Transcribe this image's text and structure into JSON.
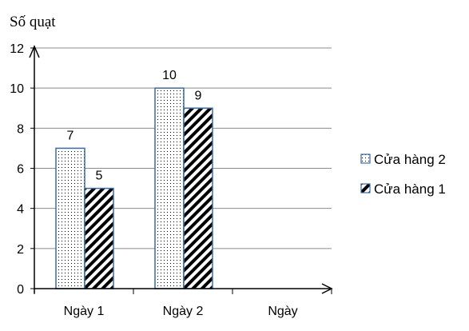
{
  "chart_data": {
    "type": "bar",
    "ylabel": "Số quạt",
    "xlabel": "Ngày",
    "categories": [
      "Ngày 1",
      "Ngày 2"
    ],
    "ylim": [
      0,
      12
    ],
    "yticks": [
      0,
      2,
      4,
      6,
      8,
      10,
      12
    ],
    "grid": true,
    "legend_position": "right",
    "series": [
      {
        "name": "Cửa hàng 2",
        "values": [
          7,
          10
        ],
        "pattern": "dots",
        "border_color": "#3a6aa8"
      },
      {
        "name": "Cửa hàng 1",
        "values": [
          5,
          9
        ],
        "pattern": "diagonal-stripes",
        "border_color": "#3a6aa8"
      }
    ]
  }
}
